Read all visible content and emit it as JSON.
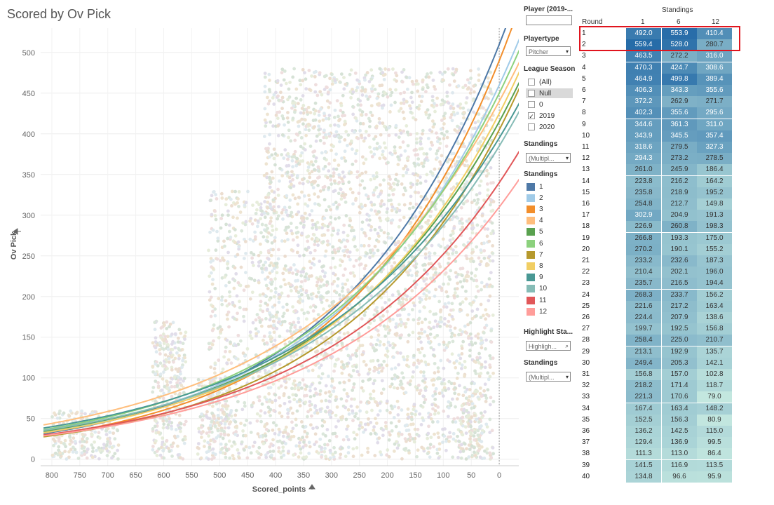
{
  "title": "Scored by Ov Pick",
  "chart_data": {
    "type": "scatter",
    "title": "Scored by Ov Pick",
    "xlabel": "Scored_points",
    "ylabel": "Ov Pick",
    "x_ticks": [
      800,
      750,
      700,
      650,
      600,
      550,
      500,
      450,
      400,
      350,
      300,
      250,
      200,
      150,
      100,
      50,
      0
    ],
    "y_ticks": [
      0,
      50,
      100,
      150,
      200,
      250,
      300,
      350,
      400,
      450,
      500
    ],
    "xlim": [
      820,
      -35
    ],
    "ylim": [
      -8,
      530
    ],
    "reverse_x": true,
    "trend_type": "exponential",
    "series": [
      {
        "name": "1",
        "color": "#4e79a7",
        "y_at_800": 33,
        "y_at_0": 510
      },
      {
        "name": "2",
        "color": "#a0cbe8",
        "y_at_800": 35,
        "y_at_0": 460
      },
      {
        "name": "3",
        "color": "#f28e2b",
        "y_at_800": 30,
        "y_at_0": 490
      },
      {
        "name": "4",
        "color": "#ffbe7d",
        "y_at_800": 44,
        "y_at_0": 440
      },
      {
        "name": "5",
        "color": "#59a14f",
        "y_at_800": 36,
        "y_at_0": 415
      },
      {
        "name": "6",
        "color": "#8cd17d",
        "y_at_800": 38,
        "y_at_0": 450
      },
      {
        "name": "7",
        "color": "#b6992d",
        "y_at_800": 29,
        "y_at_0": 405
      },
      {
        "name": "8",
        "color": "#f1ce63",
        "y_at_800": 34,
        "y_at_0": 425
      },
      {
        "name": "9",
        "color": "#499894",
        "y_at_800": 40,
        "y_at_0": 395
      },
      {
        "name": "10",
        "color": "#86bcb6",
        "y_at_800": 37,
        "y_at_0": 385
      },
      {
        "name": "11",
        "color": "#e15759",
        "y_at_800": 31,
        "y_at_0": 340
      },
      {
        "name": "12",
        "color": "#ff9d9a",
        "y_at_800": 30,
        "y_at_0": 310
      }
    ]
  },
  "filters": {
    "player_label": "Player (2019-...",
    "playertype_label": "Playertype",
    "playertype_value": "Pitcher",
    "league_season_label": "League Season",
    "seasons": [
      {
        "label": "(All)",
        "checked": false
      },
      {
        "label": "Null",
        "checked": false
      },
      {
        "label": "0",
        "checked": false
      },
      {
        "label": "2019",
        "checked": true
      },
      {
        "label": "2020",
        "checked": false
      }
    ],
    "standings_filter_label": "Standings",
    "standings_filter_value": "(Multipl...",
    "legend_title": "Standings",
    "highlight_label": "Highlight Sta...",
    "highlight_placeholder": "Highligh...",
    "standings2_label": "Standings",
    "standings2_value": "(Multipl...",
    "dropdown_arrow": "▾"
  },
  "table": {
    "group_header": "Standings",
    "row_header": "Round",
    "columns": [
      "1",
      "6",
      "12"
    ],
    "rows": [
      {
        "round": "1",
        "v": [
          "492.0",
          "553.9",
          "410.4"
        ]
      },
      {
        "round": "2",
        "v": [
          "559.4",
          "528.0",
          "280.7"
        ]
      },
      {
        "round": "3",
        "v": [
          "463.5",
          "272.2",
          "316.0"
        ]
      },
      {
        "round": "4",
        "v": [
          "470.3",
          "424.7",
          "308.6"
        ]
      },
      {
        "round": "5",
        "v": [
          "464.9",
          "499.8",
          "389.4"
        ]
      },
      {
        "round": "6",
        "v": [
          "406.3",
          "343.3",
          "355.6"
        ]
      },
      {
        "round": "7",
        "v": [
          "372.2",
          "262.9",
          "271.7"
        ]
      },
      {
        "round": "8",
        "v": [
          "402.3",
          "355.6",
          "295.6"
        ]
      },
      {
        "round": "9",
        "v": [
          "344.6",
          "361.3",
          "311.0"
        ]
      },
      {
        "round": "10",
        "v": [
          "343.9",
          "345.5",
          "357.4"
        ]
      },
      {
        "round": "11",
        "v": [
          "318.6",
          "279.5",
          "327.3"
        ]
      },
      {
        "round": "12",
        "v": [
          "294.3",
          "273.2",
          "278.5"
        ]
      },
      {
        "round": "13",
        "v": [
          "261.0",
          "245.9",
          "186.4"
        ]
      },
      {
        "round": "14",
        "v": [
          "223.8",
          "216.2",
          "164.2"
        ]
      },
      {
        "round": "15",
        "v": [
          "235.8",
          "218.9",
          "195.2"
        ]
      },
      {
        "round": "16",
        "v": [
          "254.8",
          "212.7",
          "149.8"
        ]
      },
      {
        "round": "17",
        "v": [
          "302.9",
          "204.9",
          "191.3"
        ]
      },
      {
        "round": "18",
        "v": [
          "226.9",
          "260.8",
          "198.3"
        ]
      },
      {
        "round": "19",
        "v": [
          "266.8",
          "193.3",
          "175.0"
        ]
      },
      {
        "round": "20",
        "v": [
          "270.2",
          "190.1",
          "155.2"
        ]
      },
      {
        "round": "21",
        "v": [
          "233.2",
          "232.6",
          "187.3"
        ]
      },
      {
        "round": "22",
        "v": [
          "210.4",
          "202.1",
          "196.0"
        ]
      },
      {
        "round": "23",
        "v": [
          "235.7",
          "216.5",
          "194.4"
        ]
      },
      {
        "round": "24",
        "v": [
          "268.3",
          "233.7",
          "156.2"
        ]
      },
      {
        "round": "25",
        "v": [
          "221.6",
          "217.2",
          "163.4"
        ]
      },
      {
        "round": "26",
        "v": [
          "224.4",
          "207.9",
          "138.6"
        ]
      },
      {
        "round": "27",
        "v": [
          "199.7",
          "192.5",
          "156.8"
        ]
      },
      {
        "round": "28",
        "v": [
          "258.4",
          "225.0",
          "210.7"
        ]
      },
      {
        "round": "29",
        "v": [
          "213.1",
          "192.9",
          "135.7"
        ]
      },
      {
        "round": "30",
        "v": [
          "249.4",
          "205.3",
          "142.1"
        ]
      },
      {
        "round": "31",
        "v": [
          "156.8",
          "157.0",
          "102.8"
        ]
      },
      {
        "round": "32",
        "v": [
          "218.2",
          "171.4",
          "118.7"
        ]
      },
      {
        "round": "33",
        "v": [
          "221.3",
          "170.6",
          "79.0"
        ]
      },
      {
        "round": "34",
        "v": [
          "167.4",
          "163.4",
          "148.2"
        ]
      },
      {
        "round": "35",
        "v": [
          "152.5",
          "156.3",
          "80.9"
        ]
      },
      {
        "round": "36",
        "v": [
          "136.2",
          "142.5",
          "115.0"
        ]
      },
      {
        "round": "37",
        "v": [
          "129.4",
          "136.9",
          "99.5"
        ]
      },
      {
        "round": "38",
        "v": [
          "111.3",
          "113.0",
          "86.4"
        ]
      },
      {
        "round": "39",
        "v": [
          "141.5",
          "116.9",
          "113.5"
        ]
      },
      {
        "round": "40",
        "v": [
          "134.8",
          "96.6",
          "95.9"
        ]
      }
    ]
  }
}
